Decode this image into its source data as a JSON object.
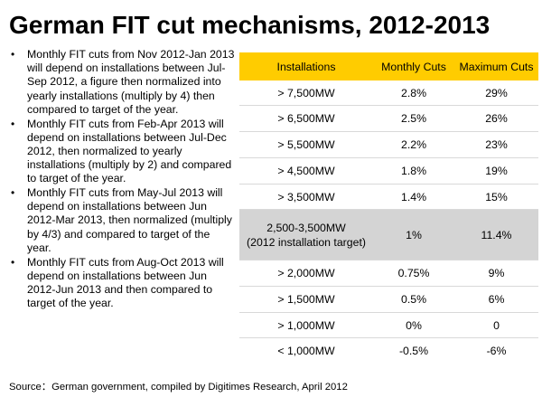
{
  "title": "German FIT cut mechanisms, 2012-2013",
  "bullet_marker": "•",
  "bullets": [
    "Monthly FIT cuts from Nov 2012-Jan 2013 will depend on installations between Jul-Sep 2012, a figure then normalized into yearly installations (multiply by 4) then compared to target of the year.",
    "Monthly FIT cuts from Feb-Apr 2013 will depend on installations between Jul-Dec 2012, then normalized to yearly installations (multiply by 2) and compared to target of the year.",
    "Monthly FIT cuts from May-Jul 2013 will depend on installations between Jun 2012-Mar 2013, then normalized (multiply by 4/3) and compared to target of the year.",
    "Monthly FIT cuts from Aug-Oct 2013 will depend on installations between Jun 2012-Jun 2013 and then compared to target of the year."
  ],
  "table": {
    "header_color": "#ffcc00",
    "highlight_color": "#d4d4d4",
    "headers": {
      "installations": "Installations",
      "monthly_cuts": "Monthly Cuts",
      "maximum_cuts": "Maximum Cuts"
    },
    "rows": [
      {
        "installations": "> 7,500MW",
        "monthly": "2.8%",
        "maximum": "29%"
      },
      {
        "installations": "> 6,500MW",
        "monthly": "2.5%",
        "maximum": "26%"
      },
      {
        "installations": "> 5,500MW",
        "monthly": "2.2%",
        "maximum": "23%"
      },
      {
        "installations": "> 4,500MW",
        "monthly": "1.8%",
        "maximum": "19%"
      },
      {
        "installations": "> 3,500MW",
        "monthly": "1.4%",
        "maximum": "15%"
      },
      {
        "installations": "2,500-3,500MW",
        "installations_note": "(2012 installation target)",
        "monthly": "1%",
        "maximum": "11.4%",
        "highlighted": true
      },
      {
        "installations": "> 2,000MW",
        "monthly": "0.75%",
        "maximum": "9%"
      },
      {
        "installations": "> 1,500MW",
        "monthly": "0.5%",
        "maximum": "6%"
      },
      {
        "installations": "> 1,000MW",
        "monthly": "0%",
        "maximum": "0"
      },
      {
        "installations": "< 1,000MW",
        "monthly": "-0.5%",
        "maximum": "-6%"
      }
    ]
  },
  "source": "Source：German government, compiled by Digitimes Research, April 2012"
}
